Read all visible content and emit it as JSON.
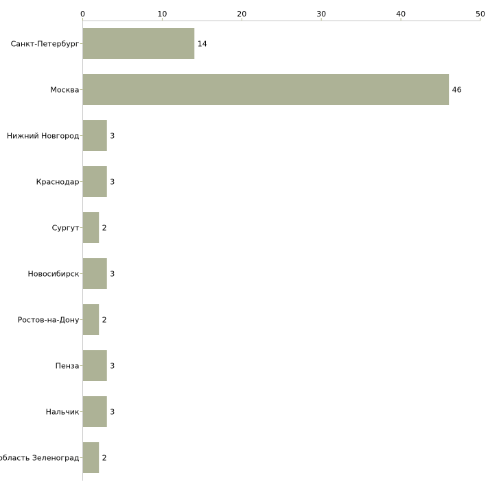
{
  "chart_data": {
    "type": "bar",
    "orientation": "horizontal",
    "title": "",
    "xlabel": "",
    "ylabel": "",
    "xlim": [
      0,
      50
    ],
    "x_ticks": [
      0,
      10,
      20,
      30,
      40,
      50
    ],
    "grid": false,
    "bar_color": "#adb296",
    "categories": [
      "Санкт-Петербург",
      "Москва",
      "Нижний Новгород",
      "Краснодар",
      "Сургут",
      "Новосибирск",
      "Ростов-на-Дону",
      "Пенза",
      "Нальчик",
      "Московская область Зеленоград"
    ],
    "values": [
      14,
      46,
      3,
      3,
      2,
      3,
      2,
      3,
      3,
      2
    ]
  }
}
